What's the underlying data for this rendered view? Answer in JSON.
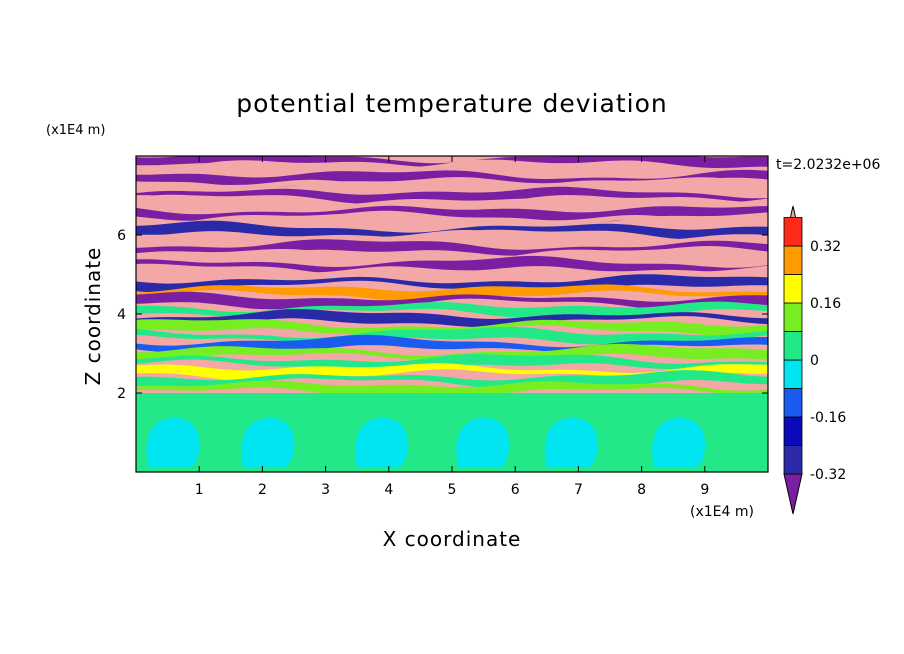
{
  "chart_data": {
    "type": "heatmap",
    "title": "potential temperature deviation",
    "xlabel": "X coordinate",
    "ylabel": "Z coordinate",
    "x_unit": "(x1E4 m)",
    "y_unit": "(x1E4 m)",
    "time_label": "t=2.0232e+06",
    "xlim": [
      0,
      10
    ],
    "ylim": [
      0,
      8
    ],
    "x_ticks": [
      1,
      2,
      3,
      4,
      5,
      6,
      7,
      8,
      9
    ],
    "y_ticks": [
      2,
      4,
      6
    ],
    "colorbar": {
      "levels": [
        -0.4,
        -0.32,
        -0.24,
        -0.16,
        -0.08,
        0,
        0.08,
        0.16,
        0.24,
        0.32,
        0.4
      ],
      "colors": [
        "#7a1fa2",
        "#2a2aa8",
        "#0a0ab8",
        "#1a5cf0",
        "#00e5f0",
        "#22e888",
        "#77ee22",
        "#ffff00",
        "#ff9a00",
        "#ff2a1a",
        "#f4a7a7"
      ],
      "labels": [
        "0.32",
        "0.16",
        "0",
        "-0.16",
        "-0.32"
      ],
      "label_values": [
        0.32,
        0.16,
        0,
        -0.16,
        -0.32
      ],
      "extend": "both"
    },
    "lower_layer": {
      "z_top": 2.0,
      "dominant_value": 0.04,
      "cell_value": -0.04,
      "cells_x": [
        0.6,
        2.1,
        3.9,
        5.5,
        6.9,
        8.6
      ]
    },
    "band_colors_top_to_bottom": [
      "#7a1fa2",
      "#f4a7a7",
      "#7a1fa2",
      "#f4a7a7",
      "#7a1fa2",
      "#f4a7a7",
      "#7a1fa2",
      "#f4a7a7",
      "#2a2aa8",
      "#f4a7a7",
      "#7a1fa2",
      "#f4a7a7",
      "#7a1fa2",
      "#f4a7a7",
      "#2a2aa8",
      "#ff9a00",
      "#7a1fa2",
      "#22e888",
      "#2a2aa8",
      "#77ee22",
      "#22e888",
      "#1a5cf0",
      "#77ee22",
      "#22e888",
      "#ffff00",
      "#22e888",
      "#77ee22"
    ]
  }
}
